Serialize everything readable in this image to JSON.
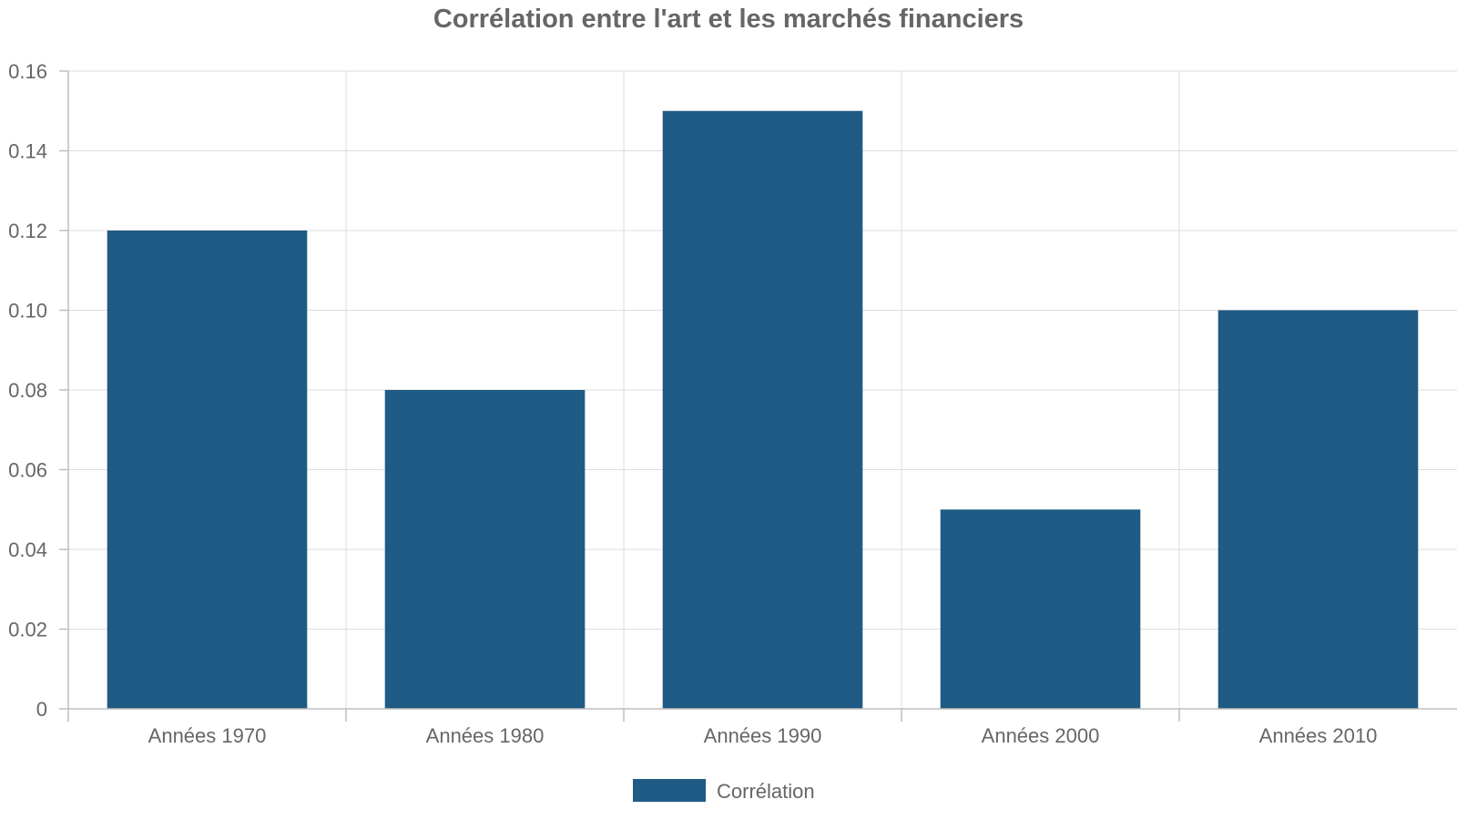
{
  "chart_data": {
    "type": "bar",
    "title": "Corrélation entre l'art et les marchés financiers",
    "categories": [
      "Années 1970",
      "Années 1980",
      "Années 1990",
      "Années 2000",
      "Années 2010"
    ],
    "series": [
      {
        "name": "Corrélation",
        "values": [
          0.12,
          0.08,
          0.15,
          0.05,
          0.1
        ],
        "color": "#1f5b84"
      }
    ],
    "ylim": [
      0,
      0.16
    ],
    "yticks": [
      "0",
      "0.02",
      "0.04",
      "0.06",
      "0.08",
      "0.10",
      "0.12",
      "0.14",
      "0.16"
    ],
    "grid": true,
    "legend_position": "bottom-center"
  }
}
